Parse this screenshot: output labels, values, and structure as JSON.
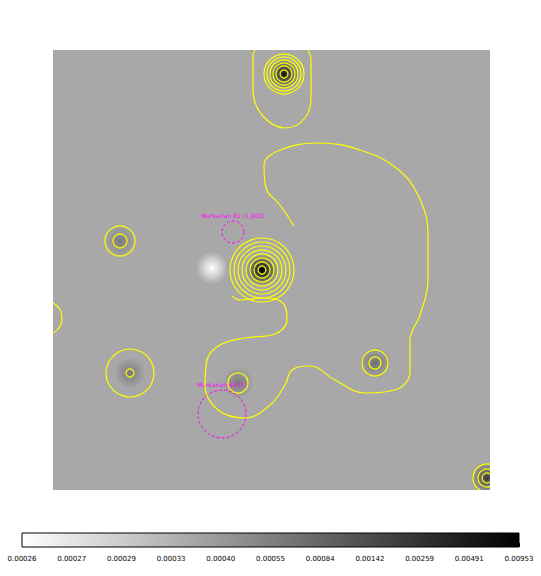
{
  "chart_data": {
    "type": "contour_map",
    "xlim": [
      0,
      437
    ],
    "ylim": [
      0,
      440
    ],
    "tick_labels": false,
    "background": 0.00036,
    "sources": [
      {
        "x": 209,
        "y": 220,
        "value": 0.00953
      },
      {
        "x": 231,
        "y": 24,
        "value": 0.0049
      },
      {
        "x": 67,
        "y": 191,
        "value": 0.0006
      },
      {
        "x": 77,
        "y": 323,
        "value": 0.0006
      },
      {
        "x": 322,
        "y": 313,
        "value": 0.0007
      },
      {
        "x": 434,
        "y": 428,
        "value": 0.002
      },
      {
        "x": 185,
        "y": 333,
        "value": 0.0006
      },
      {
        "x": 159,
        "y": 218,
        "value": 0.00026
      }
    ],
    "contours": {
      "color": "#ffff00",
      "rings": [
        {
          "x": 209,
          "y": 220,
          "r": 4
        },
        {
          "x": 209,
          "y": 220,
          "r": 8
        },
        {
          "x": 209,
          "y": 220,
          "r": 12
        },
        {
          "x": 209,
          "y": 220,
          "r": 16
        },
        {
          "x": 209,
          "y": 220,
          "r": 20
        },
        {
          "x": 209,
          "y": 220,
          "r": 24
        },
        {
          "x": 209,
          "y": 220,
          "r": 28
        },
        {
          "x": 209,
          "y": 220,
          "r": 32
        },
        {
          "x": 231,
          "y": 24,
          "r": 4
        },
        {
          "x": 231,
          "y": 24,
          "r": 8
        },
        {
          "x": 231,
          "y": 24,
          "r": 11
        },
        {
          "x": 231,
          "y": 24,
          "r": 14
        },
        {
          "x": 231,
          "y": 24,
          "r": 17
        },
        {
          "x": 231,
          "y": 24,
          "r": 20
        },
        {
          "x": 67,
          "y": 191,
          "r": 7
        },
        {
          "x": 67,
          "y": 191,
          "r": 15
        },
        {
          "x": 77,
          "y": 323,
          "r": 4
        },
        {
          "x": 77,
          "y": 323,
          "r": 24
        },
        {
          "x": 322,
          "y": 313,
          "r": 6
        },
        {
          "x": 322,
          "y": 313,
          "r": 13
        },
        {
          "x": 434,
          "y": 428,
          "r": 5
        },
        {
          "x": 434,
          "y": 428,
          "r": 9
        },
        {
          "x": 434,
          "y": 428,
          "r": 14
        },
        {
          "x": -8,
          "y": 268,
          "r": 17
        },
        {
          "x": 185,
          "y": 333,
          "r": 10
        }
      ],
      "paths": [
        [
          [
            241,
            176
          ],
          [
            227,
            155
          ],
          [
            213,
            138
          ],
          [
            211,
            115
          ],
          [
            227,
            100
          ],
          [
            267,
            93
          ],
          [
            307,
            100
          ],
          [
            342,
            117
          ],
          [
            365,
            145
          ],
          [
            375,
            185
          ],
          [
            375,
            230
          ],
          [
            367,
            265
          ],
          [
            357,
            290
          ],
          [
            357,
            322
          ],
          [
            342,
            340
          ],
          [
            312,
            343
          ],
          [
            282,
            330
          ],
          [
            257,
            316
          ],
          [
            239,
            320
          ],
          [
            232,
            335
          ],
          [
            217,
            355
          ],
          [
            192,
            368
          ],
          [
            165,
            360
          ],
          [
            152,
            335
          ],
          [
            154,
            310
          ],
          [
            167,
            295
          ],
          [
            192,
            288
          ],
          [
            222,
            284
          ],
          [
            234,
            270
          ],
          [
            230,
            253
          ],
          [
            209,
            248
          ],
          [
            187,
            250
          ],
          [
            179,
            246
          ]
        ],
        [
          [
            202,
            0
          ],
          [
            200,
            5
          ],
          [
            200,
            40
          ],
          [
            209,
            65
          ],
          [
            232,
            78
          ],
          [
            252,
            68
          ],
          [
            258,
            45
          ],
          [
            258,
            10
          ],
          [
            255,
            0
          ]
        ]
      ]
    },
    "annotations": [
      {
        "text": "Markarian 61 (1,003)",
        "x": 180,
        "y": 182,
        "r": 11,
        "color": "#ff00ff"
      },
      {
        "text": "Markarian 63 (1)",
        "x": 169,
        "y": 364,
        "r": 24,
        "color": "#ff00ff"
      }
    ],
    "colorbar": {
      "range": [
        0.00026,
        0.00953
      ],
      "ticks": [
        0.00026,
        0.00027,
        0.00029,
        0.00033,
        {
          "value": 0.0004,
          "label": "0.00040"
        },
        0.00055,
        0.00084,
        0.00142,
        0.00259,
        0.00491,
        0.00953
      ]
    }
  }
}
